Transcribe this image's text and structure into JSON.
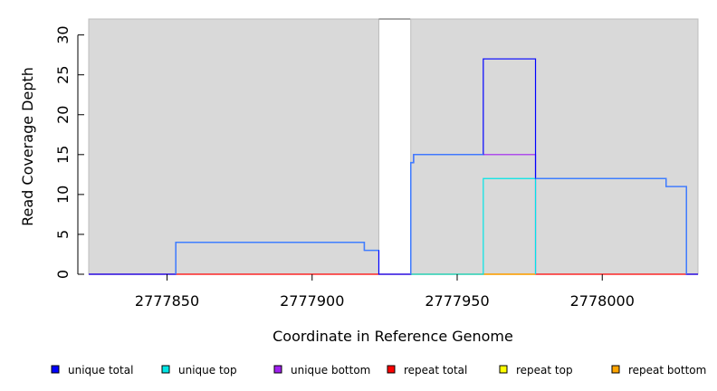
{
  "chart_data": {
    "type": "line",
    "xlabel": "Coordinate in Reference Genome",
    "ylabel": "Read Coverage Depth",
    "xlim": [
      2777823,
      2778033
    ],
    "ylim": [
      0,
      32
    ],
    "x_ticks": [
      2777850,
      2777900,
      2777950,
      2778000
    ],
    "y_ticks": [
      0,
      5,
      10,
      15,
      20,
      25,
      30
    ],
    "grid": false,
    "background_color": "#d9d9d9",
    "gaps": [
      [
        2777923,
        2777934
      ]
    ],
    "legend_position": "bottom",
    "series": [
      {
        "name": "unique total",
        "color": "#0000ff",
        "points": [
          [
            2777823,
            0
          ],
          [
            2777853,
            0
          ],
          [
            2777853,
            4
          ],
          [
            2777918,
            4
          ],
          [
            2777918,
            3
          ],
          [
            2777923,
            3
          ],
          [
            2777923,
            0
          ],
          [
            2777934,
            0
          ],
          [
            2777934,
            14
          ],
          [
            2777935,
            14
          ],
          [
            2777935,
            15
          ],
          [
            2777959,
            15
          ],
          [
            2777959,
            27
          ],
          [
            2777977,
            27
          ],
          [
            2777977,
            12
          ],
          [
            2778022,
            12
          ],
          [
            2778022,
            11
          ],
          [
            2778029,
            11
          ],
          [
            2778029,
            0
          ],
          [
            2778033,
            0
          ]
        ]
      },
      {
        "name": "unique top",
        "color": "#00e5e5",
        "points": [
          [
            2777934,
            0
          ],
          [
            2777959,
            0
          ],
          [
            2777959,
            12
          ],
          [
            2777977,
            12
          ],
          [
            2777977,
            0
          ]
        ]
      },
      {
        "name": "unique bottom",
        "color": "#a020f0",
        "points": [
          [
            2777934,
            14
          ],
          [
            2777935,
            14
          ],
          [
            2777935,
            15
          ],
          [
            2777977,
            15
          ],
          [
            2777977,
            0
          ]
        ]
      },
      {
        "name": "repeat total",
        "color": "#ff0000",
        "points": [
          [
            2777823,
            0
          ],
          [
            2777923,
            0
          ],
          [
            2777934,
            0
          ],
          [
            2778033,
            0
          ]
        ]
      },
      {
        "name": "repeat top",
        "color": "#e5e500",
        "points": [
          [
            2777934,
            0
          ],
          [
            2777959,
            0
          ],
          [
            2777977,
            0
          ]
        ]
      },
      {
        "name": "repeat bottom",
        "color": "#ffa500",
        "points": [
          [
            2777959,
            0
          ],
          [
            2777977,
            0
          ]
        ]
      }
    ],
    "overlap_color": "#3f7fff",
    "legend": [
      {
        "label": "unique total",
        "color": "#0000ff"
      },
      {
        "label": "unique top",
        "color": "#00e5e5"
      },
      {
        "label": "unique bottom",
        "color": "#a020f0"
      },
      {
        "label": "repeat total",
        "color": "#ff0000"
      },
      {
        "label": "repeat top",
        "color": "#ffff00"
      },
      {
        "label": "repeat bottom",
        "color": "#ffa500"
      }
    ]
  }
}
